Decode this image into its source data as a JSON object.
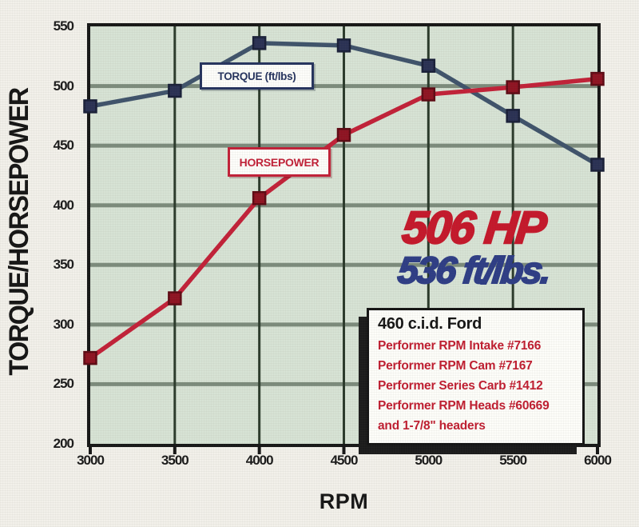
{
  "y_axis_title": "TORQUE/HORSEPOWER",
  "x_axis_title": "RPM",
  "series_labels": {
    "torque": "TORQUE (ft/lbs)",
    "horsepower": "HORSEPOWER"
  },
  "callout": {
    "hp": "506 HP",
    "torque": "536 ft/lbs."
  },
  "info_box": {
    "title": "460 c.i.d. Ford",
    "lines": [
      "Performer RPM Intake #7166",
      "Performer RPM Cam #7167",
      "Performer Series Carb #1412",
      "Performer RPM Heads #60669",
      "and 1-7/8\" headers"
    ]
  },
  "colors": {
    "page_bg": "#f2f0ea",
    "plot_bg": "#d7e3d5",
    "grid_horizontal": "#7c8b7c",
    "grid_vertical": "#2b3a2b",
    "axis": "#161616",
    "torque_line": "#3f536b",
    "torque_marker": "#2a3154",
    "torque_marker_edge": "#191f38",
    "horsepower_line": "#c22138",
    "horsepower_marker": "#8f1322",
    "horsepower_marker_edge": "#5e0a14",
    "callout_hp": "#c5182b",
    "callout_torque": "#2e3d85",
    "info_red": "#c01d30"
  },
  "chart_data": {
    "type": "line",
    "title": "",
    "xlabel": "RPM",
    "ylabel": "TORQUE/HORSEPOWER",
    "x": [
      3000,
      3500,
      4000,
      4500,
      5000,
      5500,
      6000
    ],
    "x_ticks": [
      "3000",
      "3500",
      "4000",
      "4500",
      "5000",
      "5500",
      "6000"
    ],
    "y_ticks": [
      "200",
      "250",
      "300",
      "350",
      "400",
      "450",
      "500",
      "550"
    ],
    "xlim": [
      3000,
      6000
    ],
    "ylim": [
      200,
      550
    ],
    "grid": true,
    "legend_position": "inline-boxes",
    "series": [
      {
        "name": "Torque (ft/lbs)",
        "values": [
          483,
          496,
          536,
          534,
          517,
          475,
          434
        ],
        "peak_label": "536 ft/lbs."
      },
      {
        "name": "Horsepower",
        "values": [
          272,
          322,
          406,
          459,
          493,
          499,
          506
        ],
        "peak_label": "506 HP"
      }
    ]
  }
}
